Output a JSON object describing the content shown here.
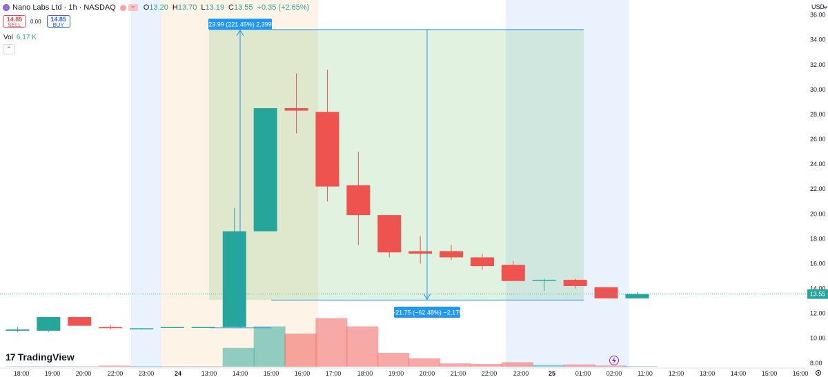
{
  "header": {
    "symbol": "Nano Labs Ltd · 1h · NASDAQ",
    "badge": "≈",
    "open_label": "O",
    "open": "13.20",
    "high_label": "H",
    "high": "13.70",
    "low_label": "L",
    "low": "13.19",
    "close_label": "C",
    "close": "13.55",
    "change": "+0.35 (+2.65%)"
  },
  "trade": {
    "sell_price": "14.85",
    "sell_label": "SELL",
    "spread": "0.00",
    "buy_price": "14.85",
    "buy_label": "BUY"
  },
  "volume_legend": {
    "label": "Vol",
    "value": "6.17 K"
  },
  "collapse_icon": "chevron-up-icon",
  "brand": {
    "name": "TradingView"
  },
  "colors": {
    "up": "#26a69a",
    "down": "#ef5350",
    "axis_text": "#131722",
    "measure": "#2196f3"
  },
  "chart_data": {
    "type": "candlestick",
    "currency": "USD",
    "ylim": [
      7.6,
      37.2
    ],
    "y_ticks": [
      "36.00",
      "34.00",
      "32.00",
      "30.00",
      "28.00",
      "26.00",
      "24.00",
      "22.00",
      "20.00",
      "18.00",
      "16.00",
      "14.00",
      "12.00",
      "10.00",
      "8.00"
    ],
    "x_ticks": [
      "18:00",
      "19:00",
      "20:00",
      "22:00",
      "23:00",
      "24",
      "13:00",
      "14:00",
      "15:00",
      "16:00",
      "17:00",
      "18:00",
      "19:00",
      "20:00",
      "21:00",
      "22:00",
      "23:00",
      "25",
      "01:00",
      "02:00",
      "11:00",
      "12:00",
      "13:00",
      "14:00",
      "15:00",
      "16:00"
    ],
    "current_price": "13.55",
    "candles": [
      {
        "o": 10.6,
        "h": 10.9,
        "l": 10.5,
        "c": 10.7
      },
      {
        "o": 10.6,
        "h": 11.7,
        "l": 10.5,
        "c": 11.7
      },
      {
        "o": 11.7,
        "h": 11.7,
        "l": 11.0,
        "c": 11.0
      },
      {
        "o": 10.9,
        "h": 11.1,
        "l": 10.7,
        "c": 10.8
      },
      {
        "o": 10.8,
        "h": 10.8,
        "l": 10.7,
        "c": 10.8
      },
      {
        "o": 10.9,
        "h": 10.9,
        "l": 10.9,
        "c": 10.9
      },
      {
        "o": 10.9,
        "h": 10.9,
        "l": 10.9,
        "c": 10.9
      },
      {
        "o": 10.9,
        "h": 20.5,
        "l": 10.9,
        "c": 18.6
      },
      {
        "o": 18.6,
        "h": 28.5,
        "l": 18.6,
        "c": 28.5
      },
      {
        "o": 28.5,
        "h": 31.3,
        "l": 26.5,
        "c": 28.3
      },
      {
        "o": 28.2,
        "h": 31.6,
        "l": 21.0,
        "c": 22.2
      },
      {
        "o": 22.3,
        "h": 25.0,
        "l": 17.5,
        "c": 19.9
      },
      {
        "o": 19.9,
        "h": 19.9,
        "l": 16.5,
        "c": 16.9
      },
      {
        "o": 17.0,
        "h": 18.2,
        "l": 16.0,
        "c": 16.8
      },
      {
        "o": 17.0,
        "h": 17.5,
        "l": 16.3,
        "c": 16.5
      },
      {
        "o": 16.5,
        "h": 16.8,
        "l": 15.5,
        "c": 15.8
      },
      {
        "o": 15.9,
        "h": 16.2,
        "l": 14.6,
        "c": 14.6
      },
      {
        "o": 14.7,
        "h": 14.8,
        "l": 13.8,
        "c": 14.7
      },
      {
        "o": 14.7,
        "h": 14.8,
        "l": 14.0,
        "c": 14.2
      },
      {
        "o": 14.1,
        "h": 14.1,
        "l": 13.2,
        "c": 13.2
      },
      {
        "o": 13.2,
        "h": 13.7,
        "l": 13.19,
        "c": 13.55
      }
    ],
    "volume_relative": [
      0.0,
      0.0,
      0.0,
      0.02,
      0.01,
      0.005,
      0.005,
      0.34,
      0.73,
      0.6,
      0.88,
      0.73,
      0.25,
      0.15,
      0.06,
      0.05,
      0.08,
      0.03,
      0.04,
      0.02,
      0.01
    ],
    "measurements": [
      {
        "label": "23.99 (221.45%) 2,399",
        "from": 10.83,
        "to": 34.82
      },
      {
        "label": "−21.75 (−62.48%) −2,175",
        "from": 34.82,
        "to": 13.07
      }
    ],
    "flash_icon": "lightning-icon"
  }
}
